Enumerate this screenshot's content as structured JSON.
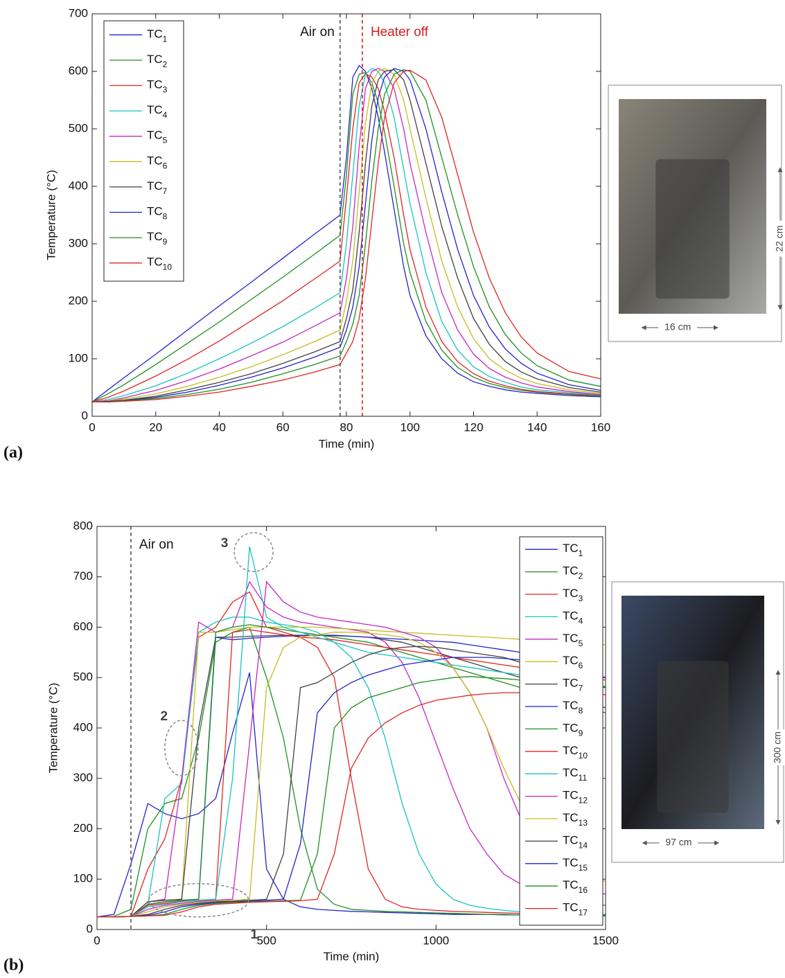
{
  "chart_data": [
    {
      "type": "line",
      "panel_label": "(a)",
      "xlabel": "Time (min)",
      "ylabel": "Temperature (°C)",
      "xlim": [
        0,
        160
      ],
      "ylim": [
        0,
        700
      ],
      "xticks": [
        0,
        20,
        40,
        60,
        80,
        100,
        120,
        140,
        160
      ],
      "yticks": [
        0,
        100,
        200,
        300,
        400,
        500,
        600,
        700
      ],
      "legend": "upper left",
      "markers": [
        {
          "x": 78,
          "label": "Air on",
          "color": "#555555",
          "side": "left"
        },
        {
          "x": 85,
          "label": "Heater off",
          "color": "#d42020",
          "side": "right"
        }
      ],
      "annotations": [],
      "inset": {
        "height_label": "22 cm",
        "width_label": "16 cm"
      },
      "x": [
        0,
        5,
        10,
        20,
        30,
        40,
        50,
        60,
        70,
        78,
        80,
        82,
        84,
        86,
        88,
        90,
        92,
        95,
        98,
        100,
        105,
        110,
        115,
        120,
        125,
        130,
        135,
        140,
        150,
        160
      ],
      "series": [
        {
          "name": "TC1",
          "color": "#2222cc",
          "values": [
            25,
            46,
            67,
            108,
            150,
            192,
            233,
            275,
            317,
            350,
            450,
            590,
            610,
            600,
            570,
            520,
            460,
            360,
            260,
            210,
            140,
            100,
            75,
            60,
            52,
            46,
            42,
            40,
            36,
            34
          ]
        },
        {
          "name": "TC2",
          "color": "#1d8f1d",
          "values": [
            25,
            39,
            55,
            90,
            127,
            164,
            203,
            242,
            282,
            315,
            420,
            560,
            595,
            598,
            580,
            545,
            495,
            400,
            300,
            250,
            165,
            115,
            85,
            68,
            57,
            50,
            45,
            42,
            38,
            35
          ]
        },
        {
          "name": "TC3",
          "color": "#e02424",
          "values": [
            25,
            33,
            44,
            70,
            99,
            131,
            166,
            201,
            239,
            270,
            380,
            500,
            580,
            596,
            590,
            570,
            530,
            450,
            350,
            290,
            190,
            130,
            95,
            74,
            61,
            53,
            47,
            43,
            39,
            36
          ]
        },
        {
          "name": "TC4",
          "color": "#17c2c2",
          "values": [
            25,
            29,
            36,
            53,
            75,
            100,
            127,
            156,
            188,
            215,
            300,
            420,
            540,
            595,
            605,
            600,
            580,
            520,
            430,
            370,
            250,
            165,
            115,
            86,
            69,
            59,
            51,
            46,
            41,
            37
          ]
        },
        {
          "name": "TC5",
          "color": "#c426c4",
          "values": [
            25,
            27,
            32,
            45,
            62,
            82,
            105,
            129,
            157,
            180,
            240,
            330,
            470,
            570,
            600,
            605,
            600,
            570,
            500,
            440,
            320,
            215,
            150,
            108,
            83,
            68,
            58,
            51,
            43,
            38
          ]
        },
        {
          "name": "TC6",
          "color": "#c4bd22",
          "values": [
            25,
            27,
            30,
            39,
            52,
            68,
            86,
            107,
            130,
            150,
            200,
            270,
            390,
            510,
            580,
            600,
            605,
            595,
            550,
            500,
            380,
            270,
            190,
            135,
            100,
            80,
            66,
            57,
            46,
            40
          ]
        },
        {
          "name": "TC7",
          "color": "#404040",
          "values": [
            25,
            26,
            28,
            35,
            46,
            59,
            74,
            92,
            112,
            130,
            170,
            220,
            320,
            440,
            540,
            585,
            600,
            603,
            585,
            550,
            440,
            330,
            240,
            170,
            125,
            95,
            77,
            65,
            50,
            42
          ]
        },
        {
          "name": "TC8",
          "color": "#2222cc",
          "values": [
            25,
            26,
            27,
            33,
            42,
            54,
            68,
            84,
            103,
            120,
            150,
            190,
            260,
            370,
            480,
            555,
            590,
            605,
            600,
            585,
            500,
            390,
            290,
            210,
            155,
            117,
            92,
            75,
            55,
            45
          ]
        },
        {
          "name": "TC9",
          "color": "#1d8f1d",
          "values": [
            25,
            25,
            27,
            31,
            38,
            47,
            59,
            74,
            90,
            105,
            130,
            160,
            210,
            300,
            410,
            500,
            560,
            595,
            603,
            600,
            550,
            450,
            350,
            260,
            190,
            142,
            110,
            88,
            63,
            52
          ]
        },
        {
          "name": "TC10",
          "color": "#e02424",
          "values": [
            25,
            25,
            26,
            29,
            35,
            42,
            52,
            63,
            77,
            90,
            110,
            130,
            170,
            240,
            340,
            440,
            520,
            580,
            600,
            602,
            585,
            520,
            420,
            320,
            240,
            180,
            138,
            110,
            78,
            65
          ]
        }
      ]
    },
    {
      "type": "line",
      "panel_label": "(b)",
      "xlabel": "Time (min)",
      "ylabel": "Temperature (°C)",
      "xlim": [
        0,
        1500
      ],
      "ylim": [
        0,
        800
      ],
      "xticks": [
        0,
        500,
        1000,
        1500
      ],
      "yticks": [
        0,
        100,
        200,
        300,
        400,
        500,
        600,
        700,
        800
      ],
      "legend": "upper right",
      "markers": [
        {
          "x": 100,
          "label": "Air on",
          "color": "#555555",
          "side": "right"
        }
      ],
      "annotations": [
        {
          "text": "1",
          "x": 300,
          "y": 58
        },
        {
          "text": "2",
          "x": 249,
          "y": 360
        },
        {
          "text": "3",
          "x": 462,
          "y": 749
        }
      ],
      "inset": {
        "height_label": "300 cm",
        "width_label": "97 cm"
      },
      "x": [
        0,
        50,
        100,
        150,
        200,
        250,
        300,
        350,
        400,
        450,
        500,
        550,
        600,
        650,
        700,
        750,
        800,
        850,
        900,
        950,
        1000,
        1050,
        1100,
        1150,
        1200,
        1250,
        1300,
        1350,
        1400,
        1450,
        1500
      ],
      "series": [
        {
          "name": "TC1",
          "color": "#2222cc",
          "values": [
            25,
            30,
            130,
            250,
            230,
            220,
            230,
            260,
            390,
            510,
            120,
            60,
            45,
            40,
            38,
            36,
            35,
            34,
            33,
            32,
            31,
            30,
            30,
            30,
            29,
            29,
            28,
            28,
            28,
            28,
            27
          ]
        },
        {
          "name": "TC2",
          "color": "#1d8f1d",
          "values": [
            25,
            26,
            40,
            200,
            250,
            260,
            380,
            570,
            590,
            600,
            500,
            380,
            200,
            80,
            50,
            40,
            38,
            36,
            35,
            34,
            33,
            32,
            31,
            30,
            30,
            29,
            29,
            28,
            28,
            28,
            28
          ]
        },
        {
          "name": "TC3",
          "color": "#e02424",
          "values": [
            25,
            25,
            26,
            120,
            180,
            300,
            580,
            600,
            650,
            670,
            600,
            590,
            580,
            560,
            500,
            300,
            120,
            60,
            45,
            40,
            38,
            36,
            35,
            34,
            33,
            32,
            31,
            30,
            30,
            29,
            29
          ]
        },
        {
          "name": "TC4",
          "color": "#17c2c2",
          "values": [
            25,
            25,
            26,
            50,
            260,
            290,
            590,
            610,
            620,
            620,
            610,
            605,
            600,
            590,
            570,
            540,
            480,
            380,
            250,
            150,
            90,
            60,
            48,
            42,
            38,
            35,
            33,
            32,
            31,
            30,
            30
          ]
        },
        {
          "name": "TC5",
          "color": "#c426c4",
          "values": [
            25,
            25,
            26,
            55,
            60,
            300,
            610,
            590,
            600,
            690,
            640,
            620,
            610,
            605,
            600,
            595,
            590,
            570,
            530,
            460,
            370,
            280,
            200,
            150,
            110,
            90,
            75,
            65,
            58,
            52,
            48
          ]
        },
        {
          "name": "TC6",
          "color": "#c4bd22",
          "values": [
            25,
            25,
            26,
            55,
            58,
            60,
            590,
            590,
            595,
            600,
            600,
            600,
            600,
            600,
            598,
            596,
            594,
            592,
            590,
            588,
            586,
            584,
            582,
            580,
            578,
            576,
            574,
            572,
            570,
            568,
            565
          ]
        },
        {
          "name": "TC7",
          "color": "#404040",
          "values": [
            25,
            25,
            26,
            55,
            58,
            60,
            400,
            580,
            580,
            582,
            583,
            584,
            584,
            584,
            583,
            582,
            580,
            575,
            570,
            560,
            550,
            540,
            530,
            520,
            510,
            500,
            490,
            480,
            470,
            450,
            440
          ]
        },
        {
          "name": "TC8",
          "color": "#2222cc",
          "values": [
            25,
            25,
            26,
            50,
            55,
            58,
            60,
            580,
            575,
            578,
            580,
            582,
            583,
            584,
            584,
            582,
            580,
            578,
            576,
            574,
            572,
            570,
            565,
            560,
            555,
            550,
            540,
            530,
            520,
            510,
            500
          ]
        },
        {
          "name": "TC9",
          "color": "#1d8f1d",
          "values": [
            25,
            25,
            26,
            50,
            55,
            58,
            60,
            590,
            600,
            605,
            600,
            595,
            590,
            585,
            580,
            575,
            570,
            560,
            550,
            540,
            530,
            520,
            510,
            500,
            490,
            480,
            470,
            460,
            450,
            440,
            430
          ]
        },
        {
          "name": "TC10",
          "color": "#e02424",
          "values": [
            25,
            25,
            26,
            48,
            52,
            56,
            58,
            60,
            590,
            595,
            590,
            585,
            580,
            578,
            575,
            570,
            565,
            560,
            555,
            550,
            545,
            540,
            535,
            530,
            525,
            520,
            515,
            510,
            505,
            500,
            495
          ]
        },
        {
          "name": "TC11",
          "color": "#17c2c2",
          "values": [
            25,
            25,
            26,
            45,
            50,
            55,
            58,
            60,
            300,
            760,
            620,
            600,
            590,
            580,
            570,
            560,
            550,
            545,
            540,
            535,
            530,
            525,
            520,
            515,
            510,
            505,
            500,
            495,
            490,
            485,
            480
          ]
        },
        {
          "name": "TC12",
          "color": "#c426c4",
          "values": [
            25,
            25,
            26,
            40,
            48,
            52,
            56,
            58,
            60,
            370,
            690,
            650,
            630,
            620,
            615,
            610,
            605,
            600,
            590,
            580,
            560,
            520,
            470,
            400,
            300,
            220,
            160,
            120,
            95,
            80,
            70
          ]
        },
        {
          "name": "TC13",
          "color": "#c4bd22",
          "values": [
            25,
            25,
            26,
            35,
            45,
            50,
            54,
            56,
            58,
            60,
            480,
            560,
            580,
            585,
            590,
            590,
            588,
            585,
            580,
            570,
            550,
            520,
            470,
            400,
            320,
            250,
            200,
            160,
            130,
            110,
            95
          ]
        },
        {
          "name": "TC14",
          "color": "#404040",
          "values": [
            25,
            25,
            26,
            30,
            40,
            48,
            52,
            55,
            56,
            58,
            60,
            150,
            480,
            490,
            510,
            530,
            545,
            555,
            560,
            562,
            560,
            555,
            550,
            545,
            540,
            530,
            520,
            510,
            500,
            490,
            480
          ]
        },
        {
          "name": "TC15",
          "color": "#2222cc",
          "values": [
            25,
            25,
            26,
            28,
            35,
            45,
            50,
            53,
            55,
            56,
            58,
            60,
            170,
            430,
            470,
            490,
            505,
            515,
            525,
            530,
            535,
            540,
            540,
            540,
            538,
            535,
            530,
            525,
            520,
            510,
            500
          ]
        },
        {
          "name": "TC16",
          "color": "#1d8f1d",
          "values": [
            25,
            25,
            26,
            27,
            30,
            40,
            48,
            52,
            54,
            55,
            56,
            57,
            58,
            150,
            400,
            440,
            460,
            470,
            480,
            490,
            495,
            500,
            502,
            500,
            498,
            495,
            492,
            490,
            488,
            485,
            482
          ]
        },
        {
          "name": "TC17",
          "color": "#e02424",
          "values": [
            25,
            25,
            26,
            27,
            28,
            35,
            45,
            50,
            52,
            54,
            55,
            56,
            57,
            60,
            150,
            320,
            380,
            410,
            430,
            445,
            455,
            460,
            465,
            468,
            470,
            470,
            470,
            470,
            470,
            468,
            466
          ]
        }
      ]
    }
  ]
}
